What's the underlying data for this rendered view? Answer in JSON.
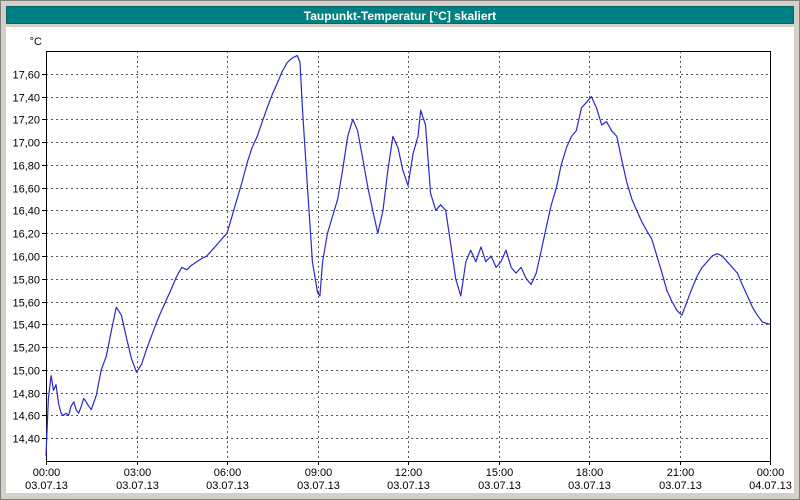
{
  "window": {
    "title": "Taupunkt-Temperatur [°C] skaliert"
  },
  "colors": {
    "titlebar": "#008080",
    "titlebar_text": "#ffffff",
    "frame": "#d4d0c8",
    "plot_background": "#ffffff",
    "plot_border": "#000000",
    "grid": "#555555",
    "line": "#2929cc",
    "text": "#000000"
  },
  "chart_data": {
    "type": "line",
    "title": "Taupunkt-Temperatur [°C] skaliert",
    "y_unit": "°C",
    "xlabel": "",
    "ylabel": "°C",
    "legend": "none",
    "grid": true,
    "ylim": [
      14.2,
      17.8
    ],
    "xlim_hours": [
      0,
      24
    ],
    "y_ticks": [
      {
        "value": 14.4,
        "label": "14,40"
      },
      {
        "value": 14.6,
        "label": "14,60"
      },
      {
        "value": 14.8,
        "label": "14,80"
      },
      {
        "value": 15.0,
        "label": "15,00"
      },
      {
        "value": 15.2,
        "label": "15,20"
      },
      {
        "value": 15.4,
        "label": "15,40"
      },
      {
        "value": 15.6,
        "label": "15,60"
      },
      {
        "value": 15.8,
        "label": "15,80"
      },
      {
        "value": 16.0,
        "label": "16,00"
      },
      {
        "value": 16.2,
        "label": "16,20"
      },
      {
        "value": 16.4,
        "label": "16,40"
      },
      {
        "value": 16.6,
        "label": "16,60"
      },
      {
        "value": 16.8,
        "label": "16,80"
      },
      {
        "value": 17.0,
        "label": "17,00"
      },
      {
        "value": 17.2,
        "label": "17,20"
      },
      {
        "value": 17.4,
        "label": "17,40"
      },
      {
        "value": 17.6,
        "label": "17,60"
      }
    ],
    "x_ticks": [
      {
        "hour": 0,
        "time": "00:00",
        "date": "03.07.13"
      },
      {
        "hour": 3,
        "time": "03:00",
        "date": "03.07.13"
      },
      {
        "hour": 6,
        "time": "06:00",
        "date": "03.07.13"
      },
      {
        "hour": 9,
        "time": "09:00",
        "date": "03.07.13"
      },
      {
        "hour": 12,
        "time": "12:00",
        "date": "03.07.13"
      },
      {
        "hour": 15,
        "time": "15:00",
        "date": "03.07.13"
      },
      {
        "hour": 18,
        "time": "18:00",
        "date": "03.07.13"
      },
      {
        "hour": 21,
        "time": "21:00",
        "date": "03.07.13"
      },
      {
        "hour": 24,
        "time": "00:00",
        "date": "04.07.13"
      }
    ],
    "series": [
      {
        "name": "Taupunkt-Temperatur",
        "color": "#2929cc",
        "x": [
          0.0,
          0.08,
          0.17,
          0.25,
          0.33,
          0.42,
          0.5,
          0.58,
          0.67,
          0.75,
          0.83,
          0.92,
          1.0,
          1.08,
          1.17,
          1.25,
          1.33,
          1.42,
          1.5,
          1.67,
          1.83,
          2.0,
          2.17,
          2.33,
          2.5,
          2.67,
          2.83,
          3.0,
          3.17,
          3.33,
          3.5,
          3.67,
          3.83,
          4.0,
          4.17,
          4.33,
          4.5,
          4.67,
          4.83,
          5.0,
          5.17,
          5.33,
          5.5,
          5.67,
          5.83,
          6.0,
          6.17,
          6.33,
          6.5,
          6.67,
          6.83,
          7.0,
          7.17,
          7.33,
          7.5,
          7.67,
          7.83,
          8.0,
          8.17,
          8.33,
          8.42,
          8.5,
          8.67,
          8.83,
          9.0,
          9.08,
          9.17,
          9.33,
          9.5,
          9.67,
          9.83,
          10.0,
          10.17,
          10.33,
          10.5,
          10.67,
          10.83,
          11.0,
          11.17,
          11.33,
          11.5,
          11.67,
          11.83,
          12.0,
          12.17,
          12.33,
          12.42,
          12.58,
          12.75,
          12.92,
          13.08,
          13.25,
          13.42,
          13.58,
          13.75,
          13.92,
          14.08,
          14.25,
          14.42,
          14.58,
          14.75,
          14.92,
          15.08,
          15.25,
          15.42,
          15.58,
          15.75,
          15.92,
          16.08,
          16.25,
          16.42,
          16.58,
          16.75,
          16.92,
          17.08,
          17.25,
          17.42,
          17.58,
          17.75,
          17.92,
          18.08,
          18.25,
          18.42,
          18.58,
          18.75,
          18.92,
          19.08,
          19.25,
          19.42,
          19.58,
          19.75,
          19.92,
          20.08,
          20.25,
          20.42,
          20.58,
          20.75,
          20.92,
          21.08,
          21.25,
          21.42,
          21.58,
          21.75,
          21.92,
          22.08,
          22.25,
          22.42,
          22.58,
          22.75,
          22.92,
          23.08,
          23.25,
          23.42,
          23.58,
          23.75,
          24.0
        ],
        "y": [
          14.25,
          14.75,
          14.95,
          14.82,
          14.87,
          14.7,
          14.62,
          14.6,
          14.62,
          14.6,
          14.68,
          14.72,
          14.65,
          14.62,
          14.68,
          14.75,
          14.72,
          14.68,
          14.65,
          14.78,
          15.0,
          15.12,
          15.35,
          15.55,
          15.48,
          15.28,
          15.1,
          14.98,
          15.05,
          15.18,
          15.3,
          15.42,
          15.52,
          15.62,
          15.72,
          15.82,
          15.9,
          15.88,
          15.92,
          15.95,
          15.98,
          16.0,
          16.05,
          16.1,
          16.15,
          16.2,
          16.35,
          16.5,
          16.65,
          16.82,
          16.95,
          17.05,
          17.18,
          17.3,
          17.42,
          17.52,
          17.62,
          17.7,
          17.74,
          17.76,
          17.7,
          17.3,
          16.6,
          15.95,
          15.68,
          15.65,
          15.95,
          16.2,
          16.35,
          16.5,
          16.75,
          17.05,
          17.2,
          17.1,
          16.85,
          16.6,
          16.4,
          16.2,
          16.4,
          16.75,
          17.05,
          16.95,
          16.75,
          16.62,
          16.9,
          17.05,
          17.28,
          17.15,
          16.55,
          16.4,
          16.45,
          16.4,
          16.1,
          15.8,
          15.65,
          15.95,
          16.05,
          15.95,
          16.08,
          15.95,
          16.0,
          15.9,
          15.95,
          16.05,
          15.9,
          15.85,
          15.9,
          15.8,
          15.75,
          15.85,
          16.05,
          16.25,
          16.45,
          16.6,
          16.8,
          16.95,
          17.05,
          17.1,
          17.3,
          17.35,
          17.4,
          17.3,
          17.15,
          17.18,
          17.1,
          17.05,
          16.85,
          16.65,
          16.5,
          16.4,
          16.3,
          16.22,
          16.15,
          16.0,
          15.85,
          15.7,
          15.6,
          15.52,
          15.48,
          15.6,
          15.72,
          15.82,
          15.9,
          15.95,
          16.0,
          16.02,
          16.0,
          15.95,
          15.9,
          15.85,
          15.75,
          15.65,
          15.55,
          15.48,
          15.42,
          15.4
        ]
      }
    ]
  }
}
